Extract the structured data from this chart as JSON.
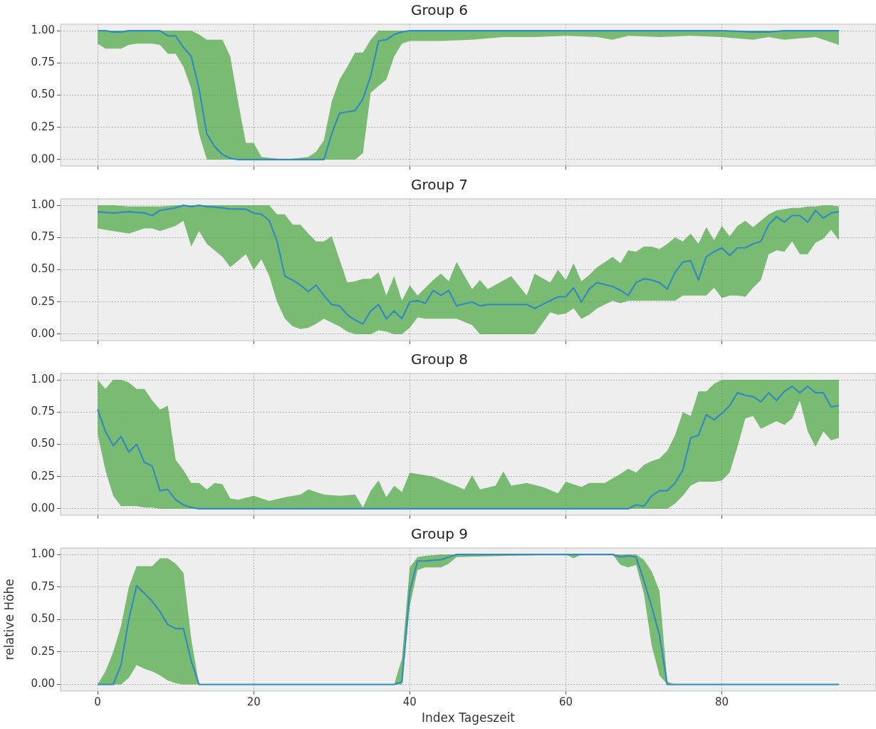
{
  "chart_data": [
    {
      "type": "line",
      "title": "Group 6",
      "xlim": [
        -4.75,
        99.75
      ],
      "xticks": [
        0,
        20,
        40,
        60,
        80
      ],
      "ylim": [
        -0.05,
        1.05
      ],
      "yticks": [
        {
          "value": 0,
          "label": "0.00"
        },
        {
          "value": 0.25,
          "label": "0.25"
        },
        {
          "value": 0.5,
          "label": "0.50"
        },
        {
          "value": 0.75,
          "label": "0.75"
        },
        {
          "value": 1,
          "label": "1.00"
        }
      ],
      "grid": true,
      "legend": false,
      "tick_labels": "y",
      "marker": "none",
      "line_style": "solid",
      "series": [
        {
          "color": "#348abd",
          "x": [
            0,
            1,
            2,
            3,
            4,
            5,
            6,
            7,
            8,
            9,
            10,
            11,
            12,
            13,
            14,
            15,
            16,
            17,
            18,
            19,
            20,
            21,
            24,
            27,
            28,
            29,
            30,
            31,
            32,
            33,
            34,
            35,
            36,
            37,
            38,
            39,
            40,
            44,
            48,
            52,
            56,
            60,
            64,
            66,
            68,
            72,
            76,
            80,
            84,
            86,
            88,
            92,
            94,
            95
          ],
          "values": [
            1,
            1,
            0.99,
            0.99,
            1,
            1,
            1,
            1,
            1,
            0.96,
            0.96,
            0.87,
            0.8,
            0.55,
            0.2,
            0.1,
            0.04,
            0.01,
            0,
            0,
            0,
            0,
            0,
            0,
            0,
            0,
            0.2,
            0.36,
            0.37,
            0.38,
            0.47,
            0.65,
            0.92,
            0.93,
            0.97,
            0.99,
            1,
            1,
            1,
            1,
            1,
            1,
            1,
            1,
            1,
            1,
            1,
            1,
            0.99,
            0.99,
            1,
            1,
            1,
            1
          ],
          "lower": [
            0.9,
            0.86,
            0.86,
            0.86,
            0.89,
            0.9,
            0.9,
            0.9,
            0.89,
            0.82,
            0.82,
            0.72,
            0.55,
            0.2,
            0,
            0,
            0,
            0,
            0,
            0,
            0,
            0,
            0,
            0,
            0,
            0,
            0,
            0,
            0,
            0,
            0.05,
            0.52,
            0.57,
            0.62,
            0.8,
            0.9,
            0.92,
            0.92,
            0.93,
            0.95,
            0.95,
            0.96,
            0.95,
            0.93,
            0.96,
            0.95,
            0.96,
            0.95,
            0.93,
            0.95,
            0.93,
            0.95,
            0.91,
            0.89
          ],
          "upper": [
            1,
            1,
            1,
            1,
            1,
            1,
            1,
            1,
            1,
            1,
            1,
            1,
            1,
            0.97,
            0.93,
            0.93,
            0.93,
            0.8,
            0.45,
            0.13,
            0.13,
            0.02,
            0,
            0.02,
            0.06,
            0.15,
            0.45,
            0.62,
            0.72,
            0.83,
            0.83,
            0.93,
            1,
            1,
            1,
            1,
            1,
            1,
            1,
            1,
            1,
            1,
            1,
            1,
            1,
            1,
            1,
            1,
            1,
            1,
            1,
            1,
            1,
            1
          ]
        }
      ]
    },
    {
      "type": "line",
      "title": "Group 7",
      "xlim": [
        -4.75,
        99.75
      ],
      "xticks": [
        0,
        20,
        40,
        60,
        80
      ],
      "ylim": [
        -0.05,
        1.05
      ],
      "yticks": [
        {
          "value": 0,
          "label": "0.00"
        },
        {
          "value": 0.25,
          "label": "0.25"
        },
        {
          "value": 0.5,
          "label": "0.50"
        },
        {
          "value": 0.75,
          "label": "0.75"
        },
        {
          "value": 1,
          "label": "1.00"
        }
      ],
      "grid": true,
      "legend": false,
      "tick_labels": "y",
      "marker": "none",
      "line_style": "solid",
      "series": [
        {
          "color": "#348abd",
          "x": [
            0,
            2,
            4,
            6,
            7,
            8,
            10,
            11,
            12,
            13,
            14,
            16,
            17,
            19,
            20,
            21,
            22,
            23,
            24,
            25,
            26,
            27,
            28,
            29,
            30,
            31,
            32,
            33,
            34,
            35,
            36,
            37,
            38,
            39,
            40,
            41,
            42,
            43,
            44,
            45,
            46,
            48,
            49,
            50,
            53,
            55,
            56,
            58,
            59,
            60,
            61,
            62,
            63,
            64,
            66,
            67,
            68,
            69,
            70,
            71,
            72,
            73,
            74,
            75,
            76,
            77,
            78,
            79,
            80,
            81,
            82,
            83,
            84,
            85,
            86,
            87,
            88,
            89,
            90,
            91,
            92,
            93,
            94,
            95
          ],
          "values": [
            0.95,
            0.94,
            0.95,
            0.94,
            0.92,
            0.96,
            0.98,
            1,
            0.99,
            1,
            0.99,
            0.98,
            0.97,
            0.97,
            0.94,
            0.93,
            0.88,
            0.72,
            0.45,
            0.42,
            0.38,
            0.33,
            0.38,
            0.3,
            0.23,
            0.22,
            0.15,
            0.11,
            0.08,
            0.18,
            0.23,
            0.12,
            0.18,
            0.12,
            0.25,
            0.26,
            0.24,
            0.34,
            0.3,
            0.34,
            0.22,
            0.25,
            0.22,
            0.23,
            0.23,
            0.23,
            0.2,
            0.26,
            0.29,
            0.29,
            0.36,
            0.25,
            0.35,
            0.4,
            0.37,
            0.34,
            0.3,
            0.4,
            0.43,
            0.42,
            0.4,
            0.35,
            0.48,
            0.56,
            0.57,
            0.42,
            0.6,
            0.64,
            0.67,
            0.61,
            0.67,
            0.67,
            0.7,
            0.72,
            0.85,
            0.91,
            0.87,
            0.92,
            0.92,
            0.87,
            0.96,
            0.9,
            0.94,
            0.95
          ],
          "lower": [
            0.82,
            0.8,
            0.78,
            0.82,
            0.82,
            0.8,
            0.84,
            0.88,
            0.68,
            0.8,
            0.7,
            0.6,
            0.52,
            0.62,
            0.5,
            0.58,
            0.45,
            0.25,
            0.12,
            0.06,
            0.04,
            0.05,
            0.08,
            0.12,
            0.09,
            0.06,
            0.02,
            0,
            0,
            0,
            0.03,
            0.02,
            0,
            0,
            0.05,
            0.13,
            0.12,
            0.12,
            0.12,
            0.12,
            0.12,
            0.07,
            0,
            0,
            0,
            0,
            0,
            0.17,
            0.15,
            0.16,
            0.2,
            0.12,
            0.15,
            0.2,
            0.26,
            0.24,
            0.26,
            0.26,
            0.26,
            0.26,
            0.26,
            0.26,
            0.26,
            0.3,
            0.3,
            0.3,
            0.3,
            0.36,
            0.28,
            0.3,
            0.3,
            0.29,
            0.36,
            0.42,
            0.62,
            0.65,
            0.64,
            0.72,
            0.62,
            0.62,
            0.71,
            0.74,
            0.81,
            0.73
          ],
          "upper": [
            1,
            1,
            0.99,
            0.99,
            0.99,
            0.99,
            1,
            1,
            1,
            1,
            1,
            1,
            1,
            1,
            1,
            1,
            1,
            0.93,
            0.93,
            0.85,
            0.85,
            0.78,
            0.72,
            0.72,
            0.76,
            0.58,
            0.4,
            0.41,
            0.43,
            0.43,
            0.48,
            0.3,
            0.45,
            0.26,
            0.38,
            0.3,
            0.36,
            0.42,
            0.47,
            0.41,
            0.56,
            0.35,
            0.42,
            0.35,
            0.45,
            0.3,
            0.47,
            0.4,
            0.5,
            0.42,
            0.55,
            0.41,
            0.46,
            0.52,
            0.6,
            0.55,
            0.65,
            0.64,
            0.68,
            0.68,
            0.66,
            0.7,
            0.75,
            0.72,
            0.78,
            0.7,
            0.83,
            0.73,
            0.84,
            0.76,
            0.84,
            0.88,
            0.83,
            0.88,
            0.93,
            0.96,
            0.97,
            0.98,
            0.98,
            0.99,
            0.99,
            1,
            1,
            0.99
          ]
        }
      ]
    },
    {
      "type": "line",
      "title": "Group 8",
      "xlim": [
        -4.75,
        99.75
      ],
      "xticks": [
        0,
        20,
        40,
        60,
        80
      ],
      "ylim": [
        -0.05,
        1.05
      ],
      "yticks": [
        {
          "value": 0,
          "label": "0.00"
        },
        {
          "value": 0.25,
          "label": "0.25"
        },
        {
          "value": 0.5,
          "label": "0.50"
        },
        {
          "value": 0.75,
          "label": "0.75"
        },
        {
          "value": 1,
          "label": "1.00"
        }
      ],
      "grid": true,
      "legend": false,
      "tick_labels": "y",
      "marker": "none",
      "line_style": "solid",
      "series": [
        {
          "color": "#348abd",
          "x": [
            0,
            1,
            2,
            3,
            4,
            5,
            6,
            7,
            8,
            9,
            10,
            11,
            12,
            13,
            14,
            15,
            16,
            17,
            18,
            20,
            22,
            24,
            26,
            27,
            29,
            31,
            33,
            34,
            35,
            36,
            37,
            38,
            39,
            40,
            43,
            45,
            47,
            48,
            49,
            51,
            52,
            53,
            55,
            57,
            59,
            60,
            62,
            63,
            65,
            67,
            68,
            69,
            70,
            71,
            72,
            73,
            74,
            75,
            76,
            77,
            78,
            79,
            80,
            81,
            82,
            83,
            84,
            85,
            86,
            87,
            88,
            89,
            90,
            91,
            92,
            93,
            94,
            95
          ],
          "values": [
            0.77,
            0.6,
            0.49,
            0.56,
            0.44,
            0.5,
            0.36,
            0.33,
            0.14,
            0.15,
            0.07,
            0.03,
            0.01,
            0,
            0,
            0,
            0,
            0,
            0,
            0,
            0,
            0,
            0,
            0,
            0,
            0,
            0,
            0,
            0,
            0,
            0,
            0,
            0,
            0,
            0,
            0,
            0,
            0,
            0,
            0,
            0,
            0,
            0,
            0,
            0,
            0,
            0,
            0,
            0,
            0,
            0,
            0.03,
            0.02,
            0.1,
            0.14,
            0.14,
            0.2,
            0.3,
            0.55,
            0.57,
            0.73,
            0.69,
            0.74,
            0.8,
            0.9,
            0.88,
            0.87,
            0.83,
            0.9,
            0.84,
            0.91,
            0.95,
            0.9,
            0.95,
            0.9,
            0.9,
            0.79,
            0.8
          ],
          "lower": [
            0.58,
            0.3,
            0.1,
            0.02,
            0.02,
            0.02,
            0.01,
            0.01,
            0,
            0,
            0,
            0,
            0,
            0,
            0,
            0,
            0,
            0,
            0,
            0,
            0,
            0,
            0,
            0,
            0,
            0,
            0,
            0,
            0,
            0,
            0,
            0,
            0,
            0,
            0,
            0,
            0,
            0,
            0,
            0,
            0,
            0,
            0,
            0,
            0,
            0,
            0,
            0,
            0,
            0,
            0,
            0,
            0,
            0,
            0,
            0,
            0.04,
            0.1,
            0.18,
            0.21,
            0.21,
            0.21,
            0.22,
            0.28,
            0.48,
            0.7,
            0.72,
            0.62,
            0.65,
            0.68,
            0.65,
            0.7,
            0.84,
            0.6,
            0.48,
            0.6,
            0.53,
            0.55
          ],
          "upper": [
            1,
            0.93,
            1,
            1,
            0.98,
            0.93,
            0.93,
            0.84,
            0.77,
            0.8,
            0.38,
            0.3,
            0.2,
            0.2,
            0.15,
            0.2,
            0.19,
            0.08,
            0.07,
            0.1,
            0.06,
            0.09,
            0.11,
            0.15,
            0.11,
            0.1,
            0.11,
            0.01,
            0.14,
            0.22,
            0.09,
            0.18,
            0.13,
            0.28,
            0.25,
            0.2,
            0.15,
            0.26,
            0.15,
            0.18,
            0.29,
            0.18,
            0.2,
            0.17,
            0.12,
            0.21,
            0.17,
            0.2,
            0.2,
            0.27,
            0.31,
            0.28,
            0.34,
            0.37,
            0.39,
            0.45,
            0.57,
            0.75,
            0.72,
            0.91,
            0.91,
            0.97,
            1,
            1,
            1,
            1,
            1,
            1,
            1,
            1,
            1,
            1,
            1,
            1,
            1,
            1,
            1,
            1
          ]
        }
      ]
    },
    {
      "type": "line",
      "title": "Group 9",
      "xlabel": "Index Tageszeit",
      "ylabel": "relative Höhe",
      "xlim": [
        -4.75,
        99.75
      ],
      "xticks": [
        0,
        20,
        40,
        60,
        80
      ],
      "ylim": [
        -0.05,
        1.05
      ],
      "yticks": [
        {
          "value": 0,
          "label": "0.00"
        },
        {
          "value": 0.25,
          "label": "0.25"
        },
        {
          "value": 0.5,
          "label": "0.50"
        },
        {
          "value": 0.75,
          "label": "0.75"
        },
        {
          "value": 1,
          "label": "1.00"
        }
      ],
      "grid": true,
      "legend": false,
      "marker": "none",
      "line_style": "solid",
      "series": [
        {
          "color": "#348abd",
          "x": [
            0,
            1,
            2,
            3,
            4,
            5,
            6,
            7,
            8,
            9,
            10,
            11,
            12,
            13,
            38,
            39,
            40,
            41,
            42,
            44,
            45,
            46,
            60,
            61,
            62,
            66,
            67,
            68,
            69,
            70,
            71,
            72,
            73,
            74,
            95
          ],
          "values": [
            0,
            0,
            0,
            0.15,
            0.5,
            0.76,
            0.7,
            0.64,
            0.56,
            0.46,
            0.43,
            0.43,
            0.18,
            0,
            0,
            0.02,
            0.72,
            0.95,
            0.95,
            0.96,
            0.98,
            1,
            1,
            1,
            1,
            1,
            0.98,
            0.99,
            0.98,
            0.8,
            0.6,
            0.38,
            0,
            0,
            0
          ],
          "lower": [
            0,
            0,
            0,
            0,
            0.05,
            0.15,
            0.12,
            0.1,
            0.07,
            0.03,
            0.01,
            0,
            0,
            0,
            0,
            0,
            0.6,
            0.88,
            0.9,
            0.9,
            0.93,
            0.98,
            1,
            0.97,
            1,
            1,
            0.92,
            0.9,
            0.92,
            0.7,
            0.3,
            0.07,
            0,
            0,
            0
          ],
          "upper": [
            0,
            0.1,
            0.25,
            0.45,
            0.75,
            0.91,
            0.91,
            0.91,
            0.97,
            0.97,
            0.93,
            0.86,
            0.35,
            0,
            0,
            0.2,
            0.9,
            0.98,
            0.99,
            1,
            1,
            1,
            1,
            1,
            1,
            1,
            1,
            1,
            1,
            0.96,
            0.87,
            0.72,
            0.02,
            0,
            0
          ]
        }
      ]
    }
  ]
}
